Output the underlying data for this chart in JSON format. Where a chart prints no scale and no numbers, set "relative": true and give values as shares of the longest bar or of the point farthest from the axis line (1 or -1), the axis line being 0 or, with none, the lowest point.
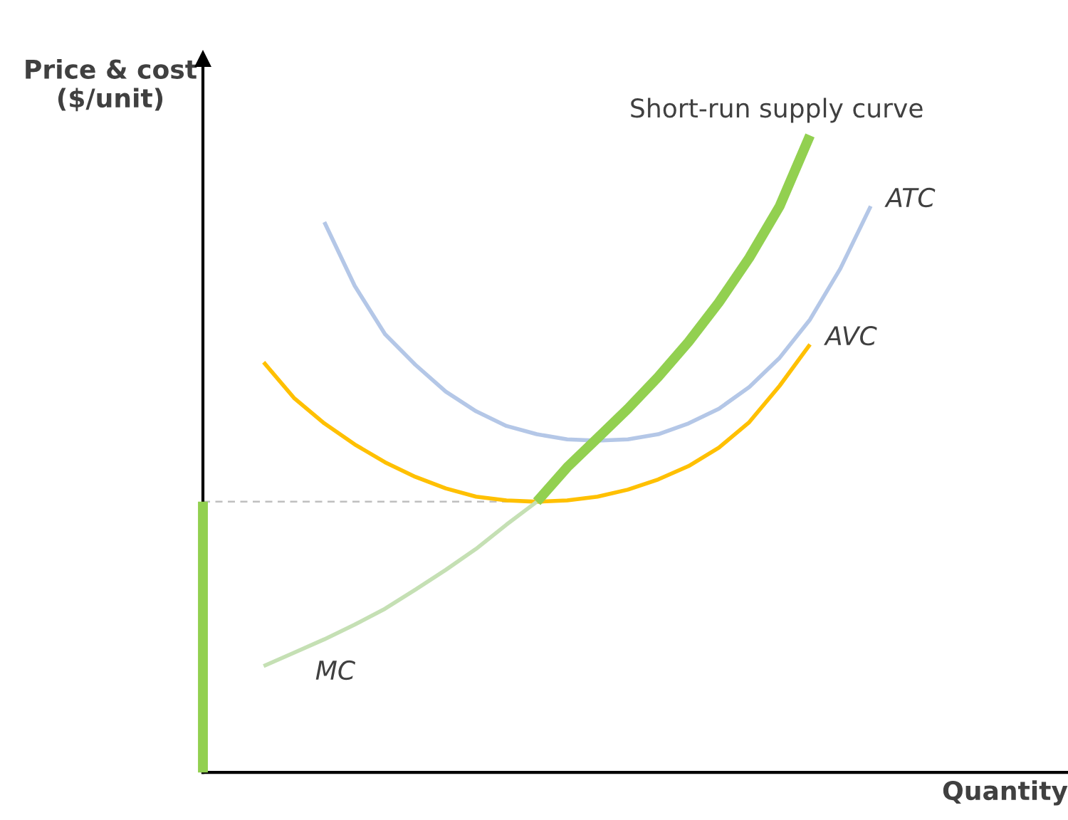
{
  "chart_data": {
    "type": "line",
    "relative": true,
    "xlabel": "Quantity",
    "ylabel": "Price & cost\n($/unit)",
    "legend": false,
    "marker": "none",
    "categories": [
      null,
      null,
      null,
      null,
      null,
      null,
      null,
      null,
      null,
      null,
      null,
      null,
      null,
      null,
      null,
      null,
      null,
      null,
      null,
      null,
      null,
      null,
      null
    ],
    "series": [
      {
        "type": "line",
        "color": "#bfbfbf",
        "line_style": "dashed",
        "values": [
          0.425,
          0.425,
          0.425,
          0.425,
          0.425,
          0.425,
          0.425,
          0.425,
          0.425,
          0.425,
          0.425,
          0.425,
          null,
          null,
          null,
          null,
          null,
          null,
          null,
          null,
          null,
          null,
          null
        ]
      },
      {
        "name": "ATC",
        "color": "#b4c7e7",
        "values": [
          null,
          null,
          null,
          null,
          0.864,
          0.764,
          0.688,
          0.64,
          0.598,
          0.567,
          0.544,
          0.531,
          0.523,
          0.521,
          0.523,
          0.531,
          0.548,
          0.571,
          0.605,
          0.651,
          0.711,
          0.791,
          0.889
        ]
      },
      {
        "name": "AVC",
        "color": "#ffc000",
        "values": [
          null,
          null,
          0.644,
          0.588,
          0.548,
          0.515,
          0.487,
          0.464,
          0.446,
          0.433,
          0.427,
          0.425,
          0.427,
          0.433,
          0.444,
          0.46,
          0.481,
          0.51,
          0.55,
          0.607,
          0.672,
          null,
          null
        ]
      },
      {
        "name": "MC",
        "color": "#c5e0b4",
        "values": [
          null,
          null,
          0.167,
          0.188,
          0.209,
          0.232,
          0.257,
          0.287,
          0.318,
          0.351,
          0.389,
          0.425,
          null,
          null,
          null,
          null,
          null,
          null,
          null,
          null,
          null,
          null,
          null
        ]
      },
      {
        "name": "Short-run supply curve",
        "color": "#92d050",
        "values": [
          null,
          null,
          null,
          null,
          null,
          null,
          null,
          null,
          null,
          null,
          null,
          0.425,
          0.479,
          0.525,
          0.571,
          0.621,
          0.676,
          0.738,
          0.808,
          0.889,
          1.0,
          null,
          null
        ]
      }
    ]
  }
}
